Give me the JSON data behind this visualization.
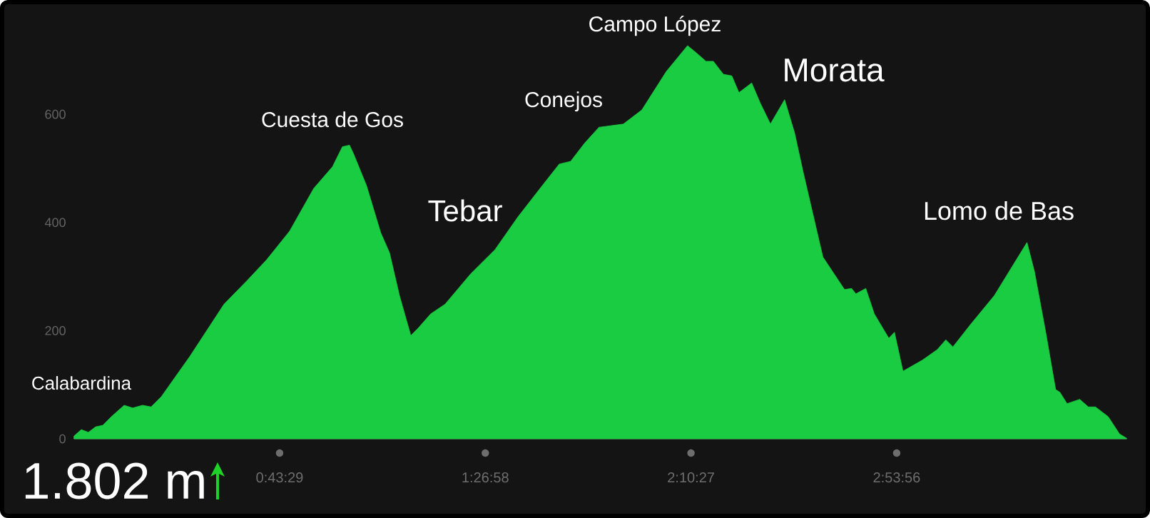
{
  "chart_data": {
    "type": "area",
    "color": "#19cc42",
    "marker": "none",
    "xlim": [
      0,
      3.71
    ],
    "ylim": [
      0,
      810
    ],
    "yticks": [
      0,
      200,
      400,
      600
    ],
    "xticks": [
      {
        "value": 0.724722,
        "label": "0:43:29"
      },
      {
        "value": 1.449444,
        "label": "1:26:58"
      },
      {
        "value": 2.174167,
        "label": "2:10:27"
      },
      {
        "value": 2.898889,
        "label": "2:53:56"
      }
    ],
    "x": [
      0,
      0.026,
      0.051,
      0.076,
      0.102,
      0.132,
      0.177,
      0.207,
      0.242,
      0.272,
      0.308,
      0.408,
      0.529,
      0.609,
      0.679,
      0.76,
      0.845,
      0.911,
      0.946,
      0.971,
      0.986,
      1.031,
      1.081,
      1.112,
      1.147,
      1.187,
      1.212,
      1.257,
      1.308,
      1.398,
      1.484,
      1.564,
      1.65,
      1.71,
      1.75,
      1.8,
      1.85,
      1.936,
      2.001,
      2.087,
      2.162,
      2.192,
      2.227,
      2.253,
      2.288,
      2.318,
      2.343,
      2.388,
      2.418,
      2.454,
      2.504,
      2.539,
      2.569,
      2.619,
      2.639,
      2.715,
      2.74,
      2.755,
      2.79,
      2.82,
      2.871,
      2.891,
      2.921,
      2.991,
      3.042,
      3.072,
      3.097,
      3.157,
      3.243,
      3.358,
      3.384,
      3.424,
      3.459,
      3.474,
      3.499,
      3.544,
      3.574,
      3.599,
      3.644,
      3.684,
      3.709
    ],
    "values": [
      5,
      17,
      12,
      22,
      25,
      41,
      62,
      57,
      62,
      59,
      78,
      152,
      249,
      292,
      331,
      384,
      463,
      503,
      540,
      543,
      526,
      468,
      381,
      344,
      265,
      191,
      204,
      231,
      249,
      305,
      350,
      410,
      468,
      508,
      513,
      547,
      576,
      582,
      608,
      679,
      727,
      714,
      698,
      698,
      674,
      671,
      640,
      658,
      621,
      582,
      627,
      566,
      494,
      381,
      336,
      276,
      278,
      268,
      278,
      231,
      186,
      197,
      125,
      146,
      165,
      183,
      170,
      210,
      265,
      363,
      310,
      197,
      91,
      86,
      65,
      73,
      59,
      59,
      41,
      9,
      1
    ],
    "annotations": [
      "Calabardina",
      "Cuesta de Gos",
      "Tebar",
      "Conejos",
      "Campo López",
      "Morata",
      "Lomo de Bas",
      "1.802 m"
    ]
  }
}
